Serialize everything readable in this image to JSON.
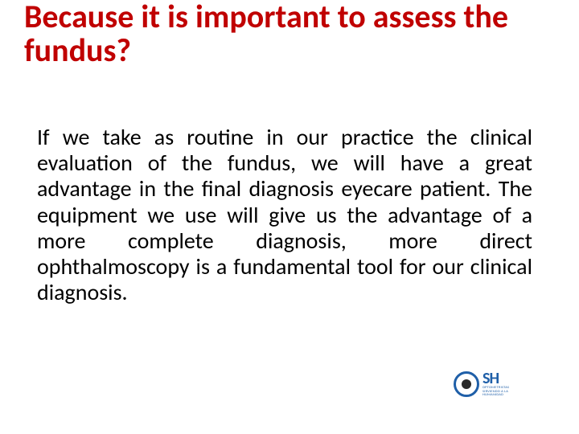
{
  "slide": {
    "title": "Because it is important to assess the fundus?",
    "title_color": "#c00000",
    "title_fontsize": 40,
    "title_fontweight": 700,
    "body": "If we take as routine in our practice the clinical evaluation of the fundus, we will have a great advantage in the final diagnosis eyecare patient. The equipment we use will give us the advantage of a more complete diagnosis, more direct ophthalmoscopy is a fundamental tool for our clinical diagnosis.",
    "body_color": "#000000",
    "body_fontsize": 28,
    "body_align": "justify",
    "background_color": "#ffffff"
  },
  "logo": {
    "mark_name": "eye-icon",
    "brand_text": "SH",
    "sub_text": "OPTOMETRISTAS SIRVIENDO A LA HUMANIDAD",
    "primary_color": "#1f5fa8"
  }
}
